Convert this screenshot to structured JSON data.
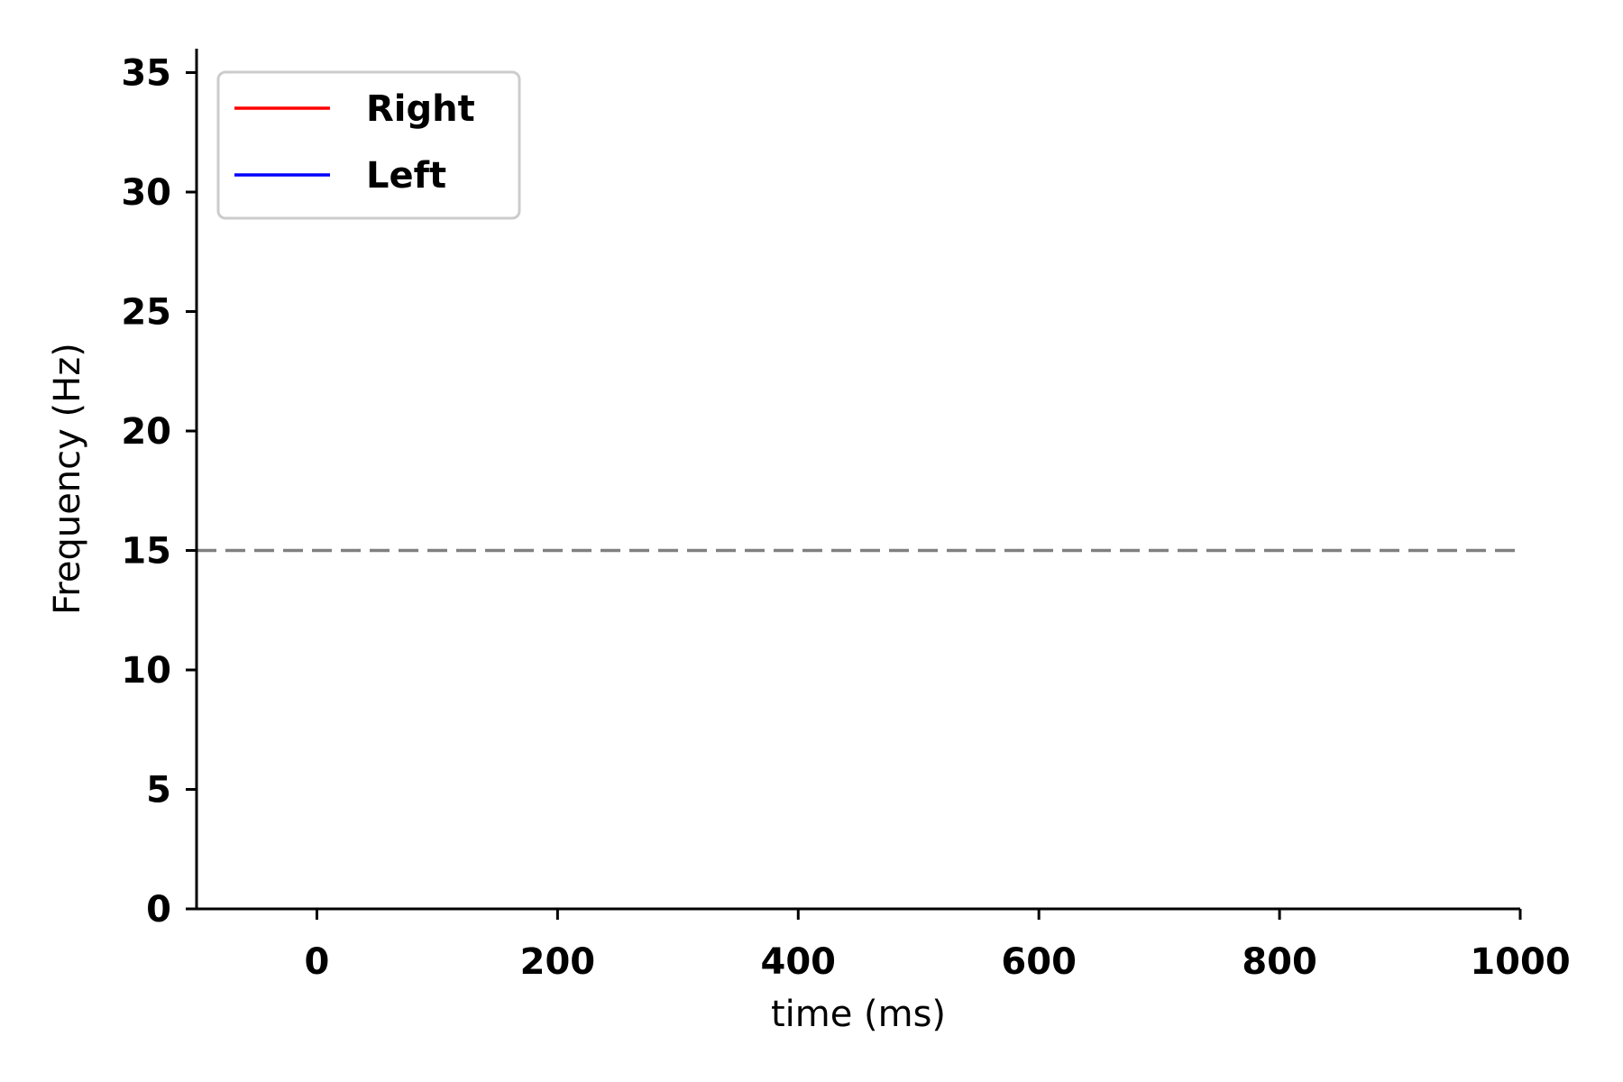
{
  "chart_data": {
    "type": "line",
    "title": "",
    "xlabel": "time (ms)",
    "ylabel": "Frequency (Hz)",
    "xlim": [
      -100,
      1000
    ],
    "ylim": [
      0,
      36
    ],
    "x_ticks": [
      0,
      200,
      400,
      600,
      800,
      1000
    ],
    "y_ticks": [
      0,
      5,
      10,
      15,
      20,
      25,
      30,
      35
    ],
    "x_tick_labels": [
      "0",
      "200",
      "400",
      "600",
      "800",
      "1000"
    ],
    "y_tick_labels": [
      "0",
      "5",
      "10",
      "15",
      "20",
      "25",
      "30",
      "35"
    ],
    "grid": false,
    "legend_position": "top-left",
    "series": [
      {
        "name": "Right",
        "color": "#ff0000",
        "x": [],
        "y": []
      },
      {
        "name": "Left",
        "color": "#0000ff",
        "x": [],
        "y": []
      }
    ],
    "reference_line": {
      "orientation": "horizontal",
      "y": 15,
      "color": "#808080",
      "style": "dashed"
    }
  }
}
